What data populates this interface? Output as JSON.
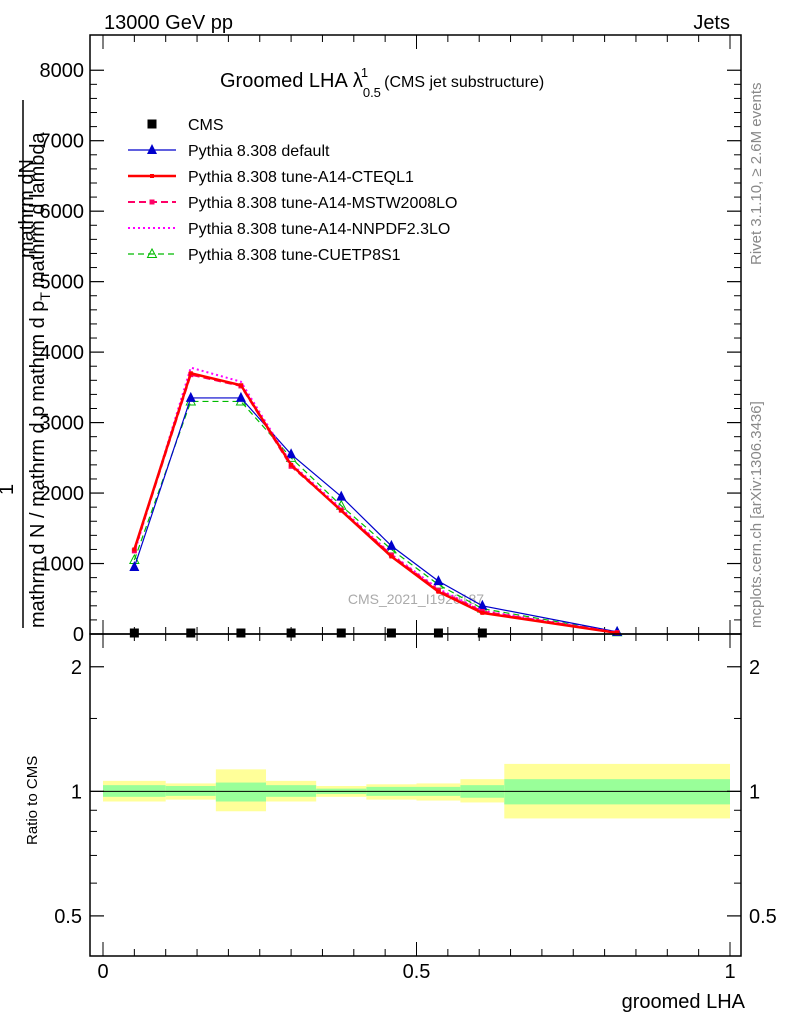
{
  "header": {
    "left": "13000 GeV pp",
    "right": "Jets"
  },
  "title": {
    "main": "Groomed LHA",
    "lambda": "λ",
    "sub": "0.5",
    "sup": "1",
    "note": "(CMS jet substructure)"
  },
  "side_labels": {
    "rivet": "Rivet 3.1.10, ≥ 2.6M events",
    "mcplots": "mcplots.cern.ch [arXiv:1306.3436]"
  },
  "watermark": "CMS_2021_I1920187",
  "main_ylabel": {
    "numerator": "mathrm dN",
    "prefix": "1",
    "denominator": "mathrm d N / mathrm d p",
    "denominator_sub": "T",
    "denominator_tail": "mathrm d p",
    "denominator_end": "mathrm d lambda"
  },
  "ratio_ylabel": "Ratio to CMS",
  "xlabel": "groomed LHA",
  "colors": {
    "cms": "#000000",
    "default": "#0000cc",
    "cteql1": "#ff0000",
    "mstw": "#ff0066",
    "nnpdf": "#ff00ff",
    "cuetp": "#00bb00",
    "band_inner": "#99ff99",
    "band_outer": "#ffff99"
  },
  "chart_data": {
    "type": "line",
    "main": {
      "xlim": [
        0,
        1
      ],
      "ylim": [
        0,
        8500
      ],
      "yticks": [
        0,
        1000,
        2000,
        3000,
        4000,
        5000,
        6000,
        7000,
        8000
      ],
      "ytick_labels": [
        "0",
        "1000",
        "2000",
        "3000",
        "4000",
        "5000",
        "6000",
        "7000",
        "8000"
      ],
      "x": [
        0.05,
        0.14,
        0.22,
        0.3,
        0.38,
        0.46,
        0.535,
        0.605,
        0.82
      ],
      "series": [
        {
          "name": "CMS",
          "key": "cms",
          "style": "marker-square",
          "values": [
            0,
            0,
            0,
            0,
            0,
            0,
            0,
            0,
            null
          ]
        },
        {
          "name": "Pythia 8.308 default",
          "key": "default",
          "style": "solid-triangle",
          "values": [
            950,
            3350,
            3350,
            2550,
            1950,
            1250,
            750,
            400,
            30
          ]
        },
        {
          "name": "Pythia 8.308 tune-A14-CTEQL1",
          "key": "cteql1",
          "style": "solid-thick",
          "values": [
            1200,
            3700,
            3530,
            2400,
            1750,
            1100,
            600,
            300,
            15
          ]
        },
        {
          "name": "Pythia 8.308 tune-A14-MSTW2008LO",
          "key": "mstw",
          "style": "dashed-square",
          "values": [
            1180,
            3680,
            3520,
            2380,
            1760,
            1120,
            620,
            320,
            20
          ]
        },
        {
          "name": "Pythia 8.308 tune-A14-NNPDF2.3LO",
          "key": "nnpdf",
          "style": "dotted",
          "values": [
            1150,
            3780,
            3580,
            2420,
            1780,
            1130,
            640,
            330,
            20
          ]
        },
        {
          "name": "Pythia 8.308 tune-CUETP8S1",
          "key": "cuetp",
          "style": "dashed-open-triangle",
          "values": [
            1050,
            3300,
            3300,
            2500,
            1820,
            1200,
            700,
            360,
            25
          ]
        }
      ]
    },
    "ratio": {
      "ylim": [
        0.4,
        2.4
      ],
      "log": true,
      "yticks": [
        0.5,
        1,
        2
      ],
      "ytick_labels": [
        "0.5",
        "1",
        "2"
      ],
      "xticks": [
        0,
        0.5,
        1
      ],
      "xtick_labels": [
        "0",
        "0.5",
        "1"
      ],
      "bins": [
        {
          "lo": 0.0,
          "hi": 0.1,
          "inner": [
            0.97,
            1.035
          ],
          "outer": [
            0.945,
            1.06
          ]
        },
        {
          "lo": 0.1,
          "hi": 0.18,
          "inner": [
            0.975,
            1.03
          ],
          "outer": [
            0.955,
            1.045
          ]
        },
        {
          "lo": 0.18,
          "hi": 0.26,
          "inner": [
            0.945,
            1.05
          ],
          "outer": [
            0.895,
            1.13
          ]
        },
        {
          "lo": 0.26,
          "hi": 0.34,
          "inner": [
            0.97,
            1.035
          ],
          "outer": [
            0.945,
            1.06
          ]
        },
        {
          "lo": 0.34,
          "hi": 0.42,
          "inner": [
            0.985,
            1.015
          ],
          "outer": [
            0.97,
            1.03
          ]
        },
        {
          "lo": 0.42,
          "hi": 0.5,
          "inner": [
            0.975,
            1.025
          ],
          "outer": [
            0.955,
            1.04
          ]
        },
        {
          "lo": 0.5,
          "hi": 0.57,
          "inner": [
            0.975,
            1.025
          ],
          "outer": [
            0.95,
            1.045
          ]
        },
        {
          "lo": 0.57,
          "hi": 0.64,
          "inner": [
            0.965,
            1.035
          ],
          "outer": [
            0.94,
            1.07
          ]
        },
        {
          "lo": 0.64,
          "hi": 1.0,
          "inner": [
            0.93,
            1.07
          ],
          "outer": [
            0.86,
            1.165
          ]
        }
      ]
    }
  }
}
